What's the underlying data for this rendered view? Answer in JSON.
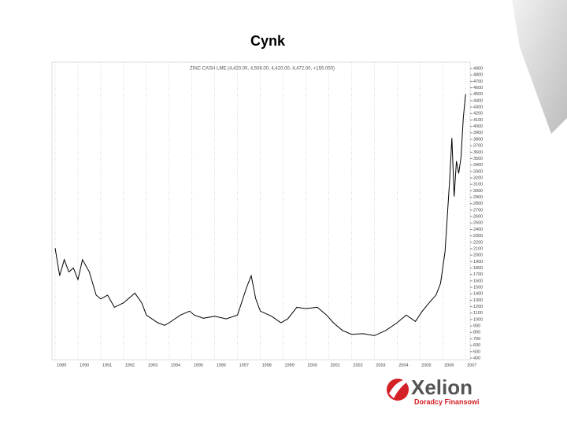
{
  "chart_data": {
    "type": "line",
    "title": "Cynk",
    "subtitle": "ZINC CASH LME (4,420.00, 4,508.00, 4,420.00, 4,472.00, +155.000)",
    "x": [
      1989.0,
      1989.2,
      1989.4,
      1989.6,
      1989.8,
      1990.0,
      1990.2,
      1990.5,
      1990.8,
      1991.0,
      1991.3,
      1991.6,
      1992.0,
      1992.5,
      1992.8,
      1993.0,
      1993.5,
      1993.8,
      1994.0,
      1994.5,
      1994.9,
      1995.1,
      1995.5,
      1996.0,
      1996.5,
      1997.0,
      1997.4,
      1997.6,
      1997.8,
      1998.0,
      1998.5,
      1998.9,
      1999.2,
      1999.6,
      2000.0,
      2000.5,
      2000.9,
      2001.2,
      2001.6,
      2002.0,
      2002.5,
      2003.0,
      2003.5,
      2004.0,
      2004.4,
      2004.8,
      2005.1,
      2005.4,
      2005.7,
      2005.9,
      2006.1,
      2006.3,
      2006.4,
      2006.5,
      2006.6,
      2006.7,
      2006.8,
      2006.9,
      2007.0
    ],
    "values": [
      2110,
      1680,
      1930,
      1740,
      1800,
      1620,
      1930,
      1740,
      1380,
      1320,
      1380,
      1190,
      1260,
      1410,
      1260,
      1070,
      950,
      910,
      950,
      1070,
      1130,
      1070,
      1020,
      1050,
      1010,
      1070,
      1500,
      1680,
      1320,
      1130,
      1050,
      950,
      1010,
      1190,
      1170,
      1190,
      1070,
      950,
      830,
      770,
      780,
      750,
      830,
      950,
      1070,
      970,
      1130,
      1260,
      1380,
      1560,
      2050,
      3150,
      3820,
      2910,
      3460,
      3270,
      3520,
      4130,
      4500
    ],
    "color": "#000000",
    "xlim": [
      1989,
      2007.2
    ],
    "xticks": [
      1989,
      1990,
      1991,
      1992,
      1993,
      1994,
      1995,
      1996,
      1997,
      1998,
      1999,
      2000,
      2001,
      2002,
      2003,
      2004,
      2005,
      2006,
      2007
    ],
    "ylim": [
      400,
      4900
    ],
    "yticks": [
      400,
      500,
      600,
      700,
      800,
      900,
      1000,
      1100,
      1200,
      1300,
      1400,
      1500,
      1600,
      1700,
      1800,
      1900,
      2000,
      2100,
      2200,
      2300,
      2400,
      2500,
      2600,
      2700,
      2800,
      2900,
      3000,
      3100,
      3200,
      3300,
      3400,
      3500,
      3600,
      3700,
      3800,
      3900,
      4000,
      4100,
      4200,
      4300,
      4400,
      4500,
      4600,
      4700,
      4800,
      4900
    ],
    "grid": true
  },
  "logo": {
    "name": "Xelion",
    "tagline": "Doradcy Finansowi"
  }
}
